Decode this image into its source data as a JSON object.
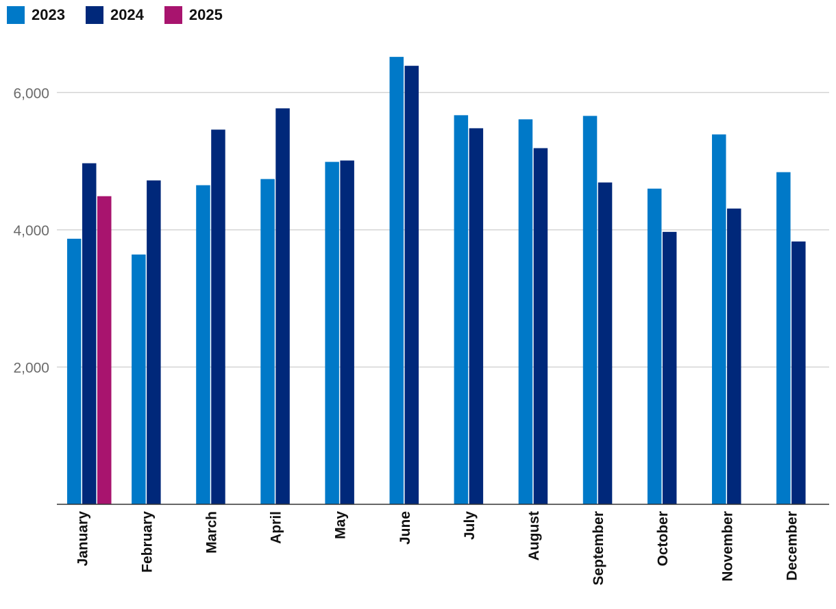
{
  "chart_data": {
    "type": "bar",
    "title": "",
    "xlabel": "",
    "ylabel": "",
    "categories": [
      "January",
      "February",
      "March",
      "April",
      "May",
      "June",
      "July",
      "August",
      "September",
      "October",
      "November",
      "December"
    ],
    "series": [
      {
        "name": "2023",
        "color": "#0079c8",
        "values": [
          3870,
          3640,
          4650,
          4740,
          4990,
          6520,
          5670,
          5610,
          5660,
          4600,
          5390,
          4840
        ]
      },
      {
        "name": "2024",
        "color": "#00287a",
        "values": [
          4970,
          4720,
          5460,
          5770,
          5010,
          6390,
          5480,
          5190,
          4690,
          3970,
          4310,
          3830
        ]
      },
      {
        "name": "2025",
        "color": "#a8146e",
        "values": [
          4490,
          null,
          null,
          null,
          null,
          null,
          null,
          null,
          null,
          null,
          null,
          null
        ]
      }
    ],
    "y_ticks": [
      {
        "value": 2000,
        "label": "2,000"
      },
      {
        "value": 4000,
        "label": "4,000"
      },
      {
        "value": 6000,
        "label": "6,000"
      }
    ],
    "ylim": [
      0,
      6950
    ],
    "grid": true,
    "legend_position": "top-left",
    "gridline_color": "#d4d4d4",
    "axis_color": "#333333"
  }
}
